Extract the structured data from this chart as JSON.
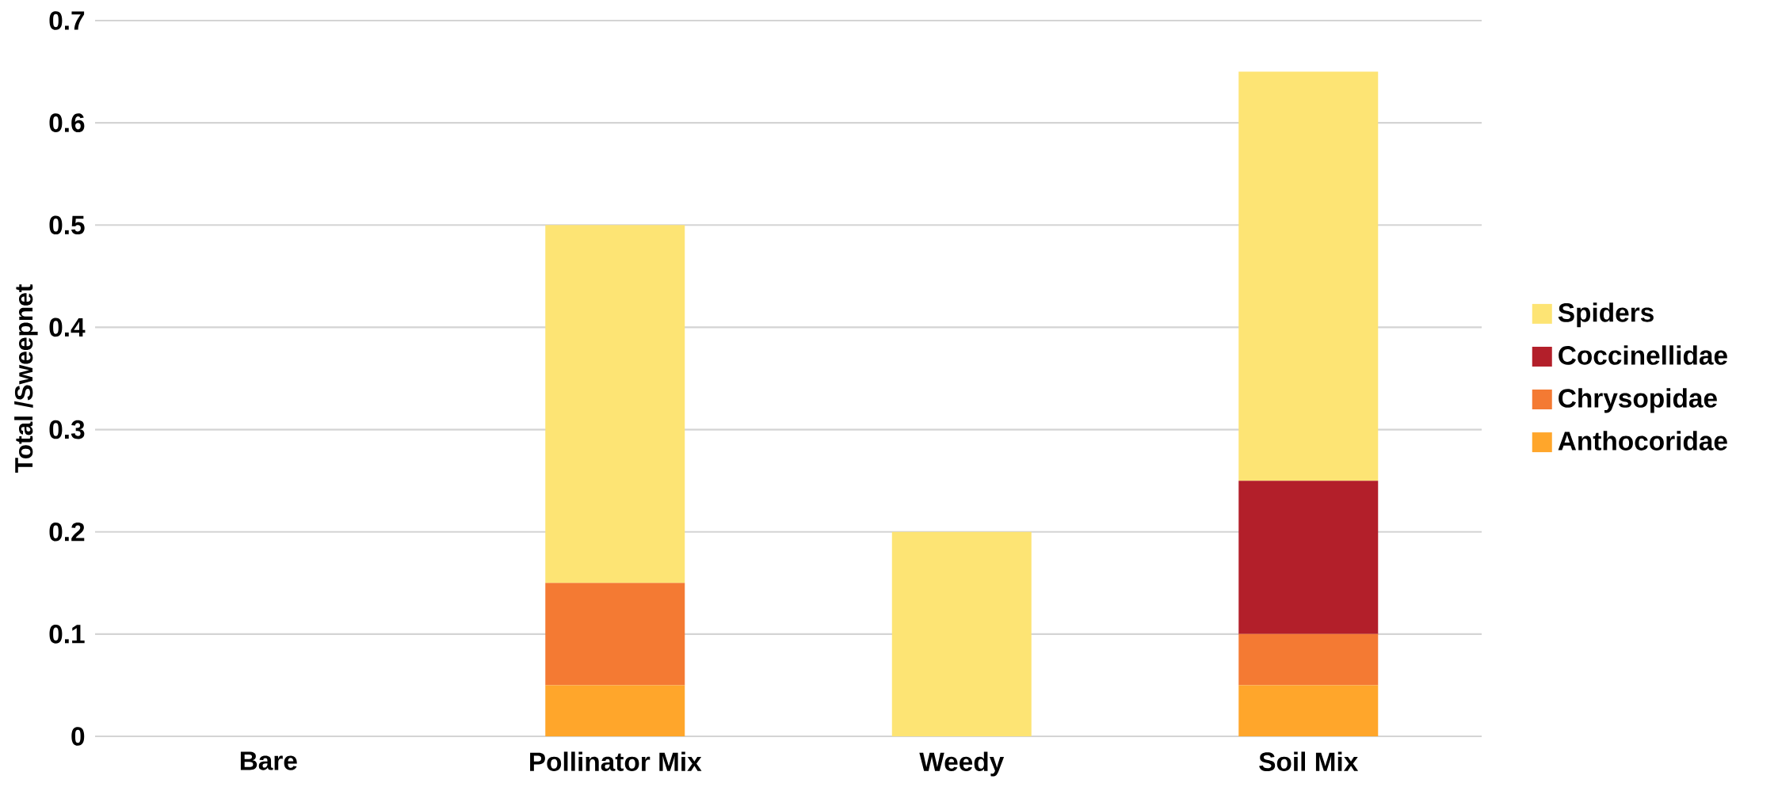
{
  "chart_data": {
    "type": "bar",
    "stacked": true,
    "ylabel": "Total /Sweepnet",
    "categories": [
      "Bare",
      "Pollinator Mix",
      "Weedy",
      "Soil Mix"
    ],
    "series": [
      {
        "name": "Anthocoridae",
        "color": "#ffa62b",
        "values": [
          0,
          0.05,
          0,
          0.05
        ]
      },
      {
        "name": "Chrysopidae",
        "color": "#f47a33",
        "values": [
          0,
          0.1,
          0,
          0.05
        ]
      },
      {
        "name": "Coccinellidae",
        "color": "#b31f2a",
        "values": [
          0,
          0,
          0,
          0.15
        ]
      },
      {
        "name": "Spiders",
        "color": "#fde474",
        "values": [
          0,
          0.35,
          0.2,
          0.4
        ]
      }
    ],
    "ylim": [
      0,
      0.7
    ],
    "yticks": [
      0,
      0.1,
      0.2,
      0.3,
      0.4,
      0.5,
      0.6,
      0.7
    ],
    "grid": "y",
    "legend": "right"
  }
}
